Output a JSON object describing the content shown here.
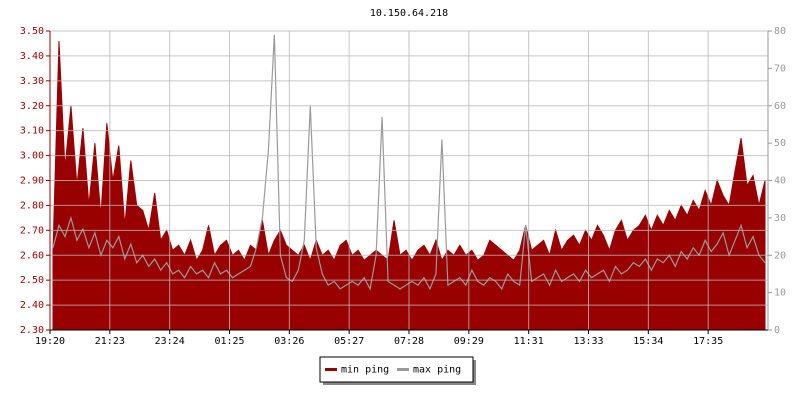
{
  "chart_data": {
    "type": "area",
    "title": "10.150.64.218",
    "categories": [
      "19:20",
      null,
      null,
      null,
      null,
      null,
      null,
      null,
      null,
      null,
      "21:23",
      null,
      null,
      null,
      null,
      null,
      null,
      null,
      null,
      null,
      "23:24",
      null,
      null,
      null,
      null,
      null,
      null,
      null,
      null,
      null,
      "01:25",
      null,
      null,
      null,
      null,
      null,
      null,
      null,
      null,
      null,
      "03:26",
      null,
      null,
      null,
      null,
      null,
      null,
      null,
      null,
      null,
      "05:27",
      null,
      null,
      null,
      null,
      null,
      null,
      null,
      null,
      null,
      "07:28",
      null,
      null,
      null,
      null,
      null,
      null,
      null,
      null,
      null,
      "09:29",
      null,
      null,
      null,
      null,
      null,
      null,
      null,
      null,
      null,
      "11:31",
      null,
      null,
      null,
      null,
      null,
      null,
      null,
      null,
      null,
      "13:33",
      null,
      null,
      null,
      null,
      null,
      null,
      null,
      null,
      null,
      "15:34",
      null,
      null,
      null,
      null,
      null,
      null,
      null,
      null,
      null,
      "17:35",
      null,
      null,
      null,
      null,
      null,
      null,
      null,
      null,
      null
    ],
    "series": [
      {
        "name": "min ping",
        "color": "#990000",
        "style": "area",
        "axis": "y",
        "values": [
          2.62,
          3.46,
          2.95,
          3.2,
          2.88,
          3.11,
          2.8,
          3.05,
          2.76,
          3.13,
          2.9,
          3.04,
          2.72,
          2.98,
          2.8,
          2.78,
          2.7,
          2.85,
          2.66,
          2.7,
          2.62,
          2.64,
          2.6,
          2.66,
          2.58,
          2.62,
          2.72,
          2.6,
          2.64,
          2.66,
          2.6,
          2.62,
          2.58,
          2.64,
          2.62,
          2.74,
          2.6,
          2.66,
          2.7,
          2.64,
          2.62,
          2.6,
          2.64,
          2.58,
          2.66,
          2.6,
          2.62,
          2.58,
          2.64,
          2.66,
          2.6,
          2.62,
          2.58,
          2.6,
          2.62,
          2.6,
          2.58,
          2.74,
          2.6,
          2.62,
          2.58,
          2.62,
          2.64,
          2.6,
          2.66,
          2.58,
          2.62,
          2.6,
          2.64,
          2.6,
          2.62,
          2.58,
          2.6,
          2.66,
          2.64,
          2.62,
          2.6,
          2.58,
          2.62,
          2.72,
          2.62,
          2.64,
          2.66,
          2.6,
          2.7,
          2.62,
          2.66,
          2.68,
          2.64,
          2.7,
          2.66,
          2.72,
          2.68,
          2.62,
          2.7,
          2.74,
          2.66,
          2.7,
          2.72,
          2.76,
          2.7,
          2.76,
          2.72,
          2.78,
          2.74,
          2.8,
          2.76,
          2.82,
          2.78,
          2.86,
          2.8,
          2.9,
          2.84,
          2.8,
          2.94,
          3.07,
          2.88,
          2.92,
          2.8,
          2.9
        ]
      },
      {
        "name": "max ping",
        "color": "#999999",
        "style": "line",
        "axis": "y2",
        "values": [
          22,
          28,
          25,
          30,
          24,
          27,
          22,
          26,
          20,
          24,
          22,
          25,
          19,
          23,
          18,
          20,
          17,
          19,
          16,
          18,
          15,
          16,
          14,
          17,
          15,
          16,
          14,
          18,
          15,
          16,
          14,
          15,
          16,
          17,
          22,
          30,
          48,
          79,
          20,
          14,
          13,
          16,
          24,
          60,
          22,
          15,
          12,
          13,
          11,
          12,
          13,
          12,
          14,
          11,
          20,
          57,
          13,
          12,
          11,
          12,
          13,
          12,
          14,
          11,
          15,
          51,
          12,
          13,
          14,
          12,
          16,
          13,
          12,
          14,
          13,
          11,
          15,
          13,
          12,
          28,
          13,
          14,
          15,
          12,
          16,
          13,
          14,
          15,
          13,
          16,
          14,
          15,
          16,
          13,
          17,
          15,
          16,
          18,
          17,
          19,
          16,
          19,
          18,
          20,
          17,
          21,
          19,
          22,
          20,
          24,
          21,
          23,
          26,
          20,
          24,
          28,
          22,
          25,
          20,
          18
        ]
      }
    ],
    "ylim": [
      2.3,
      3.5
    ],
    "yticks": [
      {
        "value": 2.3,
        "label": "2.30"
      },
      {
        "value": 2.4,
        "label": "2.40"
      },
      {
        "value": 2.5,
        "label": "2.50"
      },
      {
        "value": 2.6,
        "label": "2.60"
      },
      {
        "value": 2.7,
        "label": "2.70"
      },
      {
        "value": 2.8,
        "label": "2.80"
      },
      {
        "value": 2.9,
        "label": "2.90"
      },
      {
        "value": 3.0,
        "label": "3.00"
      },
      {
        "value": 3.1,
        "label": "3.10"
      },
      {
        "value": 3.2,
        "label": "3.20"
      },
      {
        "value": 3.3,
        "label": "3.30"
      },
      {
        "value": 3.4,
        "label": "3.40"
      },
      {
        "value": 3.5,
        "label": "3.50"
      }
    ],
    "y2lim": [
      0,
      80
    ],
    "y2ticks": [
      0,
      10,
      20,
      30,
      40,
      50,
      60,
      70,
      80
    ],
    "grid": true,
    "legend": "bottom"
  }
}
